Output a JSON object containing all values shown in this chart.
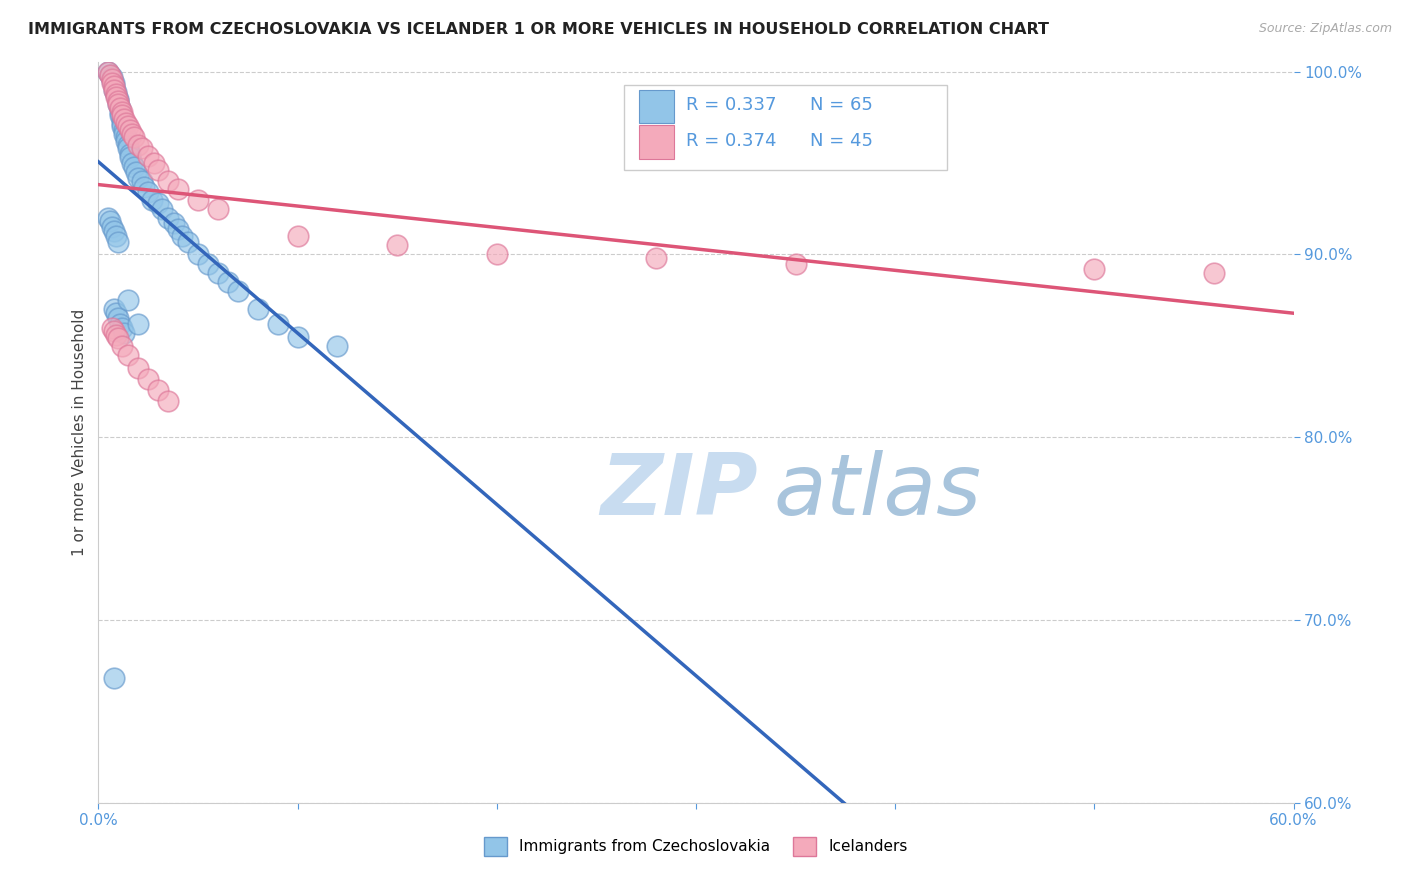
{
  "title": "IMMIGRANTS FROM CZECHOSLOVAKIA VS ICELANDER 1 OR MORE VEHICLES IN HOUSEHOLD CORRELATION CHART",
  "source_text": "Source: ZipAtlas.com",
  "ylabel": "1 or more Vehicles in Household",
  "xlim": [
    0.0,
    0.6
  ],
  "ylim": [
    0.6,
    1.005
  ],
  "xticks": [
    0.0,
    0.1,
    0.2,
    0.3,
    0.4,
    0.5,
    0.6
  ],
  "xticklabels": [
    "0.0%",
    "",
    "",
    "",
    "",
    "",
    "60.0%"
  ],
  "yticks": [
    0.6,
    0.7,
    0.8,
    0.9,
    1.0
  ],
  "yticklabels": [
    "60.0%",
    "70.0%",
    "80.0%",
    "90.0%",
    "100.0%"
  ],
  "blue_R": 0.337,
  "blue_N": 65,
  "pink_R": 0.374,
  "pink_N": 45,
  "blue_color": "#92C5E8",
  "pink_color": "#F4AABB",
  "blue_edge_color": "#6699CC",
  "pink_edge_color": "#DD7799",
  "blue_line_color": "#3366BB",
  "pink_line_color": "#DD5577",
  "tick_color": "#5599DD",
  "legend_blue_label": "Immigrants from Czechoslovakia",
  "legend_pink_label": "Icelanders",
  "blue_scatter_x": [
    0.005,
    0.006,
    0.007,
    0.007,
    0.008,
    0.008,
    0.008,
    0.009,
    0.009,
    0.01,
    0.01,
    0.01,
    0.011,
    0.011,
    0.011,
    0.012,
    0.012,
    0.012,
    0.013,
    0.013,
    0.014,
    0.014,
    0.015,
    0.015,
    0.016,
    0.016,
    0.017,
    0.018,
    0.019,
    0.02,
    0.022,
    0.023,
    0.025,
    0.027,
    0.03,
    0.032,
    0.035,
    0.038,
    0.04,
    0.042,
    0.045,
    0.05,
    0.055,
    0.06,
    0.065,
    0.07,
    0.08,
    0.09,
    0.1,
    0.12,
    0.008,
    0.009,
    0.01,
    0.011,
    0.012,
    0.013,
    0.005,
    0.006,
    0.007,
    0.008,
    0.009,
    0.01,
    0.015,
    0.02,
    0.008
  ],
  "blue_scatter_y": [
    1.0,
    0.998,
    0.997,
    0.995,
    0.994,
    0.992,
    0.99,
    0.989,
    0.987,
    0.985,
    0.984,
    0.982,
    0.98,
    0.978,
    0.976,
    0.974,
    0.972,
    0.97,
    0.968,
    0.966,
    0.964,
    0.962,
    0.96,
    0.958,
    0.955,
    0.953,
    0.95,
    0.948,
    0.945,
    0.942,
    0.94,
    0.937,
    0.934,
    0.93,
    0.928,
    0.925,
    0.92,
    0.917,
    0.914,
    0.91,
    0.907,
    0.9,
    0.895,
    0.89,
    0.885,
    0.88,
    0.87,
    0.862,
    0.855,
    0.85,
    0.87,
    0.868,
    0.865,
    0.862,
    0.86,
    0.857,
    0.92,
    0.918,
    0.915,
    0.913,
    0.91,
    0.907,
    0.875,
    0.862,
    0.668
  ],
  "pink_scatter_x": [
    0.005,
    0.006,
    0.007,
    0.007,
    0.008,
    0.008,
    0.009,
    0.009,
    0.01,
    0.01,
    0.011,
    0.012,
    0.012,
    0.013,
    0.014,
    0.015,
    0.016,
    0.017,
    0.018,
    0.02,
    0.022,
    0.025,
    0.028,
    0.03,
    0.035,
    0.04,
    0.05,
    0.06,
    0.1,
    0.15,
    0.2,
    0.28,
    0.35,
    0.5,
    0.56,
    0.007,
    0.008,
    0.009,
    0.01,
    0.012,
    0.015,
    0.02,
    0.025,
    0.03,
    0.035
  ],
  "pink_scatter_y": [
    1.0,
    0.998,
    0.996,
    0.994,
    0.992,
    0.99,
    0.988,
    0.986,
    0.984,
    0.982,
    0.98,
    0.978,
    0.976,
    0.974,
    0.972,
    0.97,
    0.968,
    0.966,
    0.964,
    0.96,
    0.958,
    0.954,
    0.95,
    0.946,
    0.94,
    0.936,
    0.93,
    0.925,
    0.91,
    0.905,
    0.9,
    0.898,
    0.895,
    0.892,
    0.89,
    0.86,
    0.858,
    0.856,
    0.854,
    0.85,
    0.845,
    0.838,
    0.832,
    0.826,
    0.82
  ]
}
